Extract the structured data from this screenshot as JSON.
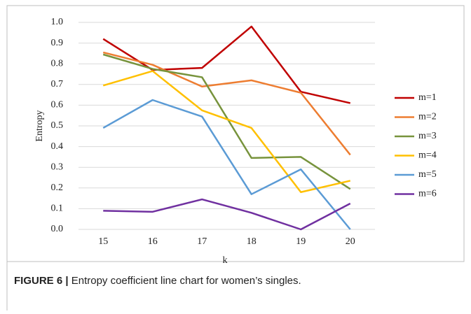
{
  "chart_data": {
    "type": "line",
    "xlabel": "k",
    "ylabel": "Entropy",
    "categories": [
      "15",
      "16",
      "17",
      "18",
      "19",
      "20"
    ],
    "series": [
      {
        "name": "m=1",
        "color": "#c00000",
        "values": [
          0.92,
          0.77,
          0.78,
          0.98,
          0.665,
          0.61
        ]
      },
      {
        "name": "m=2",
        "color": "#ed7d31",
        "values": [
          0.855,
          0.795,
          0.69,
          0.72,
          0.66,
          0.36
        ]
      },
      {
        "name": "m=3",
        "color": "#77933c",
        "values": [
          0.845,
          0.775,
          0.735,
          0.345,
          0.35,
          0.195
        ]
      },
      {
        "name": "m=4",
        "color": "#ffc000",
        "values": [
          0.695,
          0.765,
          0.575,
          0.49,
          0.18,
          0.235
        ]
      },
      {
        "name": "m=5",
        "color": "#5b9bd5",
        "values": [
          0.49,
          0.625,
          0.545,
          0.17,
          0.29,
          0.0
        ]
      },
      {
        "name": "m=6",
        "color": "#7030a0",
        "values": [
          0.09,
          0.085,
          0.145,
          0.08,
          0.0,
          0.125
        ]
      }
    ],
    "ylim": [
      0,
      1
    ],
    "yticks": [
      {
        "value": 0,
        "label": "0.0"
      },
      0.1,
      0.2,
      0.3,
      0.4,
      0.5,
      0.6,
      0.7,
      0.8,
      0.9,
      {
        "value": 1,
        "label": "1.0"
      }
    ],
    "grid": true,
    "legend": "right"
  },
  "caption": {
    "label": "FIGURE 6 |",
    "text": "Entropy coefficient line chart for women’s singles."
  }
}
